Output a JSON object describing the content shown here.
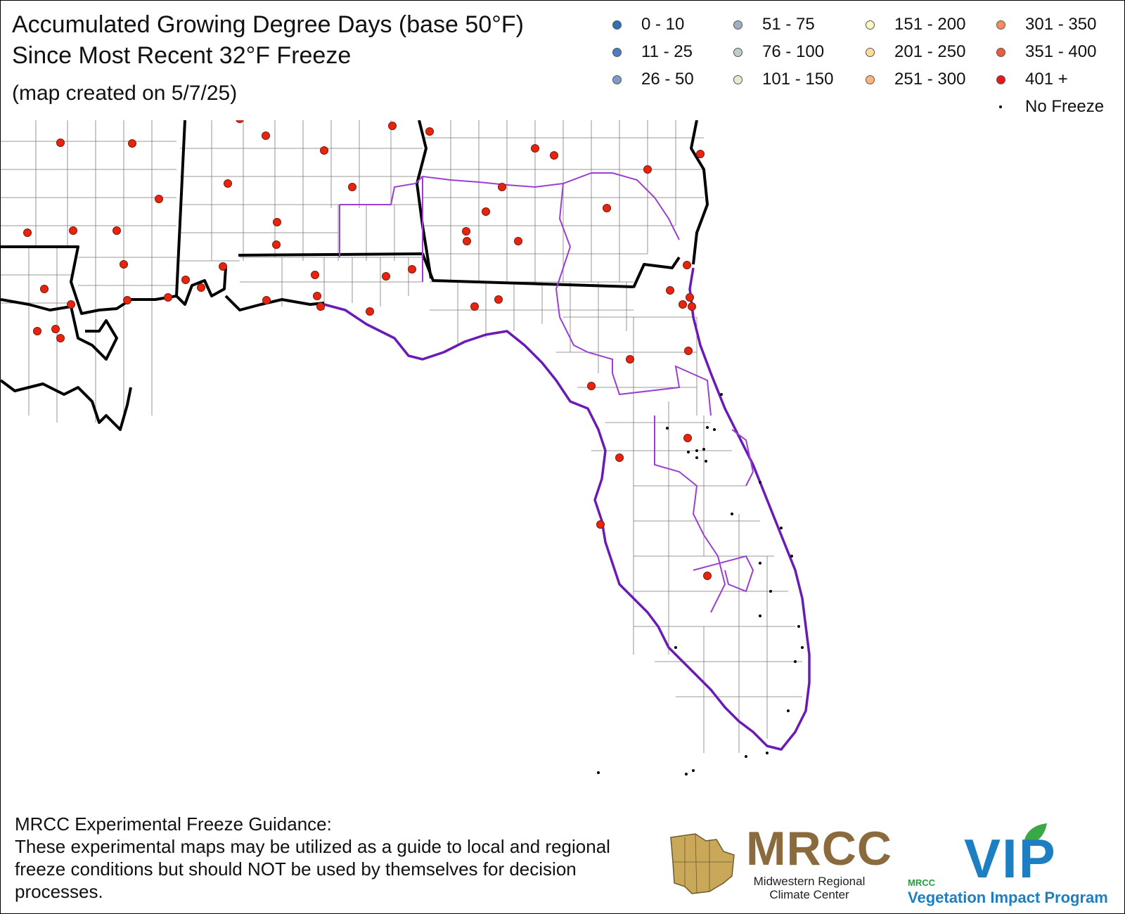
{
  "title": "Accumulated Growing Degree Days (base 50°F)",
  "subtitle": "Since Most Recent 32°F Freeze",
  "created": "(map created on 5/7/25)",
  "legend": [
    {
      "label": "0 - 10",
      "color": "#2f6fb5"
    },
    {
      "label": "11 - 25",
      "color": "#4b7fc0"
    },
    {
      "label": "26 - 50",
      "color": "#7b9bc8"
    },
    {
      "label": "51 - 75",
      "color": "#9fb0c4"
    },
    {
      "label": "76 - 100",
      "color": "#bfccc8"
    },
    {
      "label": "101 - 150",
      "color": "#e4ecd0"
    },
    {
      "label": "151 - 200",
      "color": "#fdf6c0"
    },
    {
      "label": "201 - 250",
      "color": "#fddc9a"
    },
    {
      "label": "251 - 300",
      "color": "#fcb67d"
    },
    {
      "label": "301 - 350",
      "color": "#f88c5c"
    },
    {
      "label": "351 - 400",
      "color": "#ef5a3c"
    },
    {
      "label": "401 +",
      "color": "#e31a1c"
    },
    {
      "label": "No Freeze",
      "color": "#000000"
    }
  ],
  "disclaimer": {
    "heading": "MRCC Experimental Freeze Guidance:",
    "body": "These experimental maps may be utilized as a guide to local and regional freeze conditions but should NOT be used by themselves for decision processes."
  },
  "logos": {
    "mrcc": {
      "name": "MRCC",
      "subtitle_line1": "Midwestern Regional",
      "subtitle_line2": "Climate Center"
    },
    "vip": {
      "name": "VIP",
      "small": "MRCC",
      "subtitle": "Vegetation Impact Program"
    }
  }
}
